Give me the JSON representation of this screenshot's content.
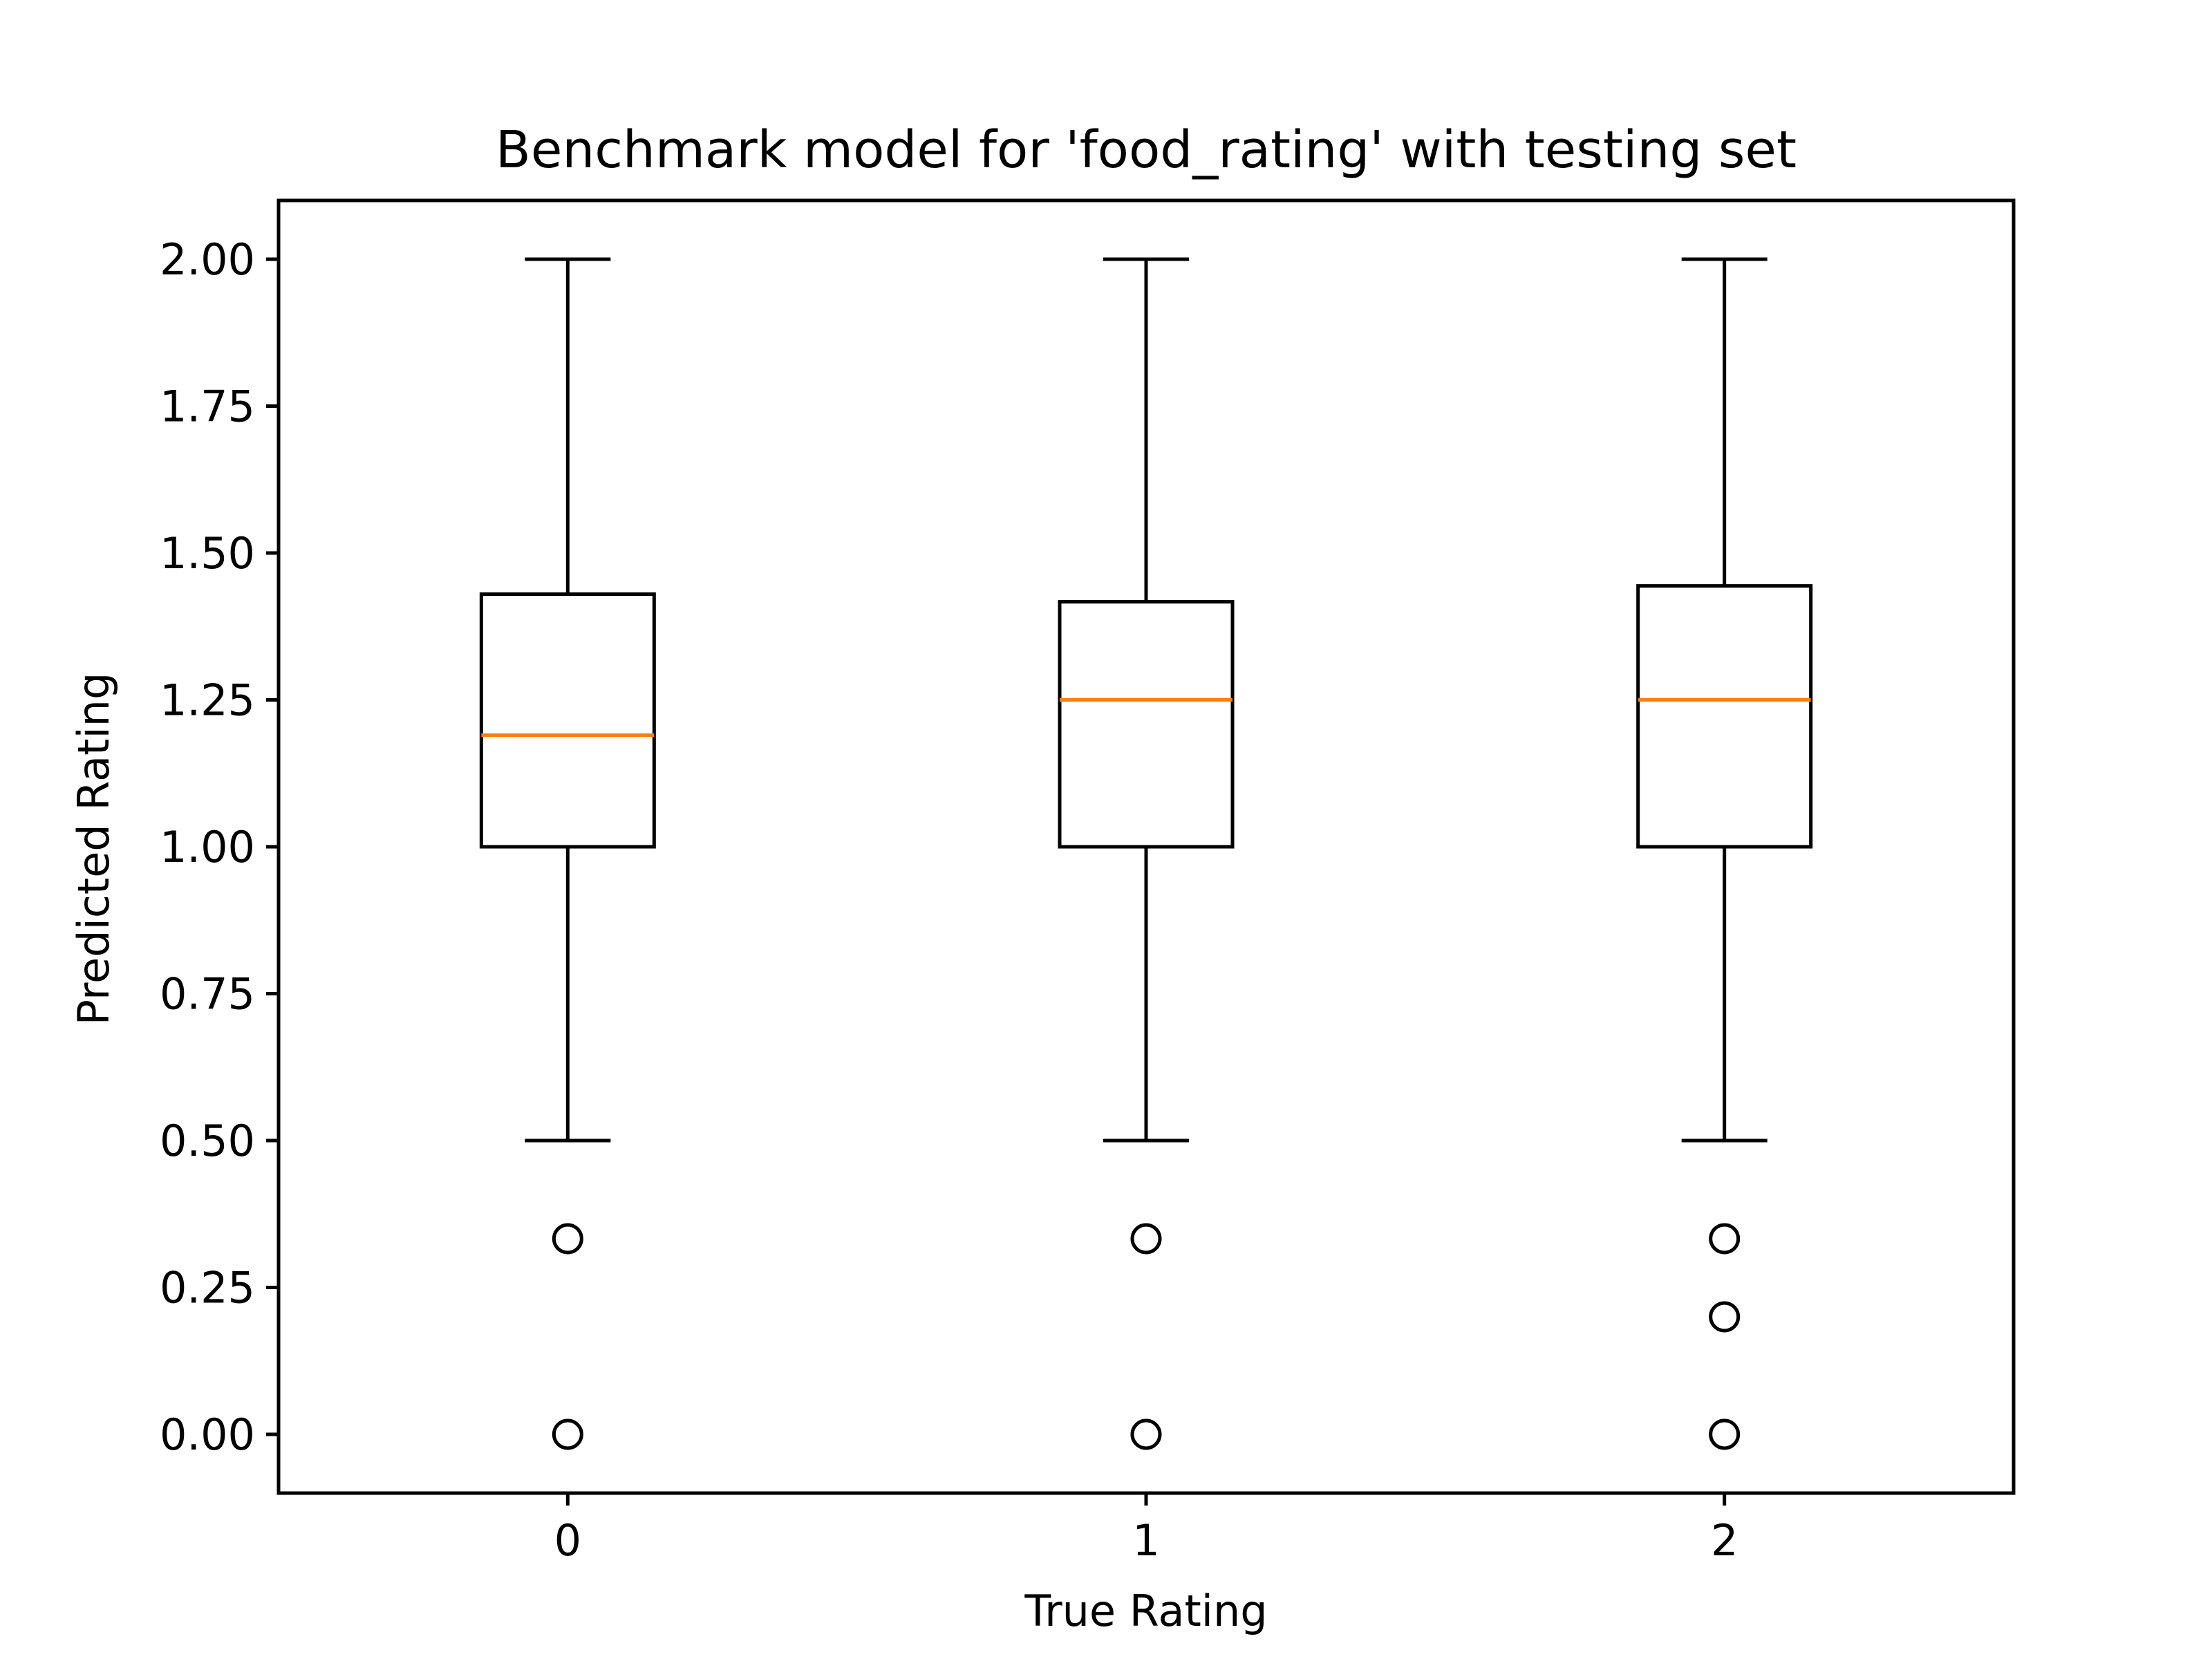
{
  "chart_data": {
    "type": "box",
    "title": "Benchmark model for 'food_rating' with testing set",
    "xlabel": "True Rating",
    "ylabel": "Predicted Rating",
    "ylim": [
      -0.1,
      2.1
    ],
    "xlim": [
      -0.5,
      2.5
    ],
    "grid": false,
    "xticks": [
      0,
      1,
      2
    ],
    "xtick_labels": [
      "0",
      "1",
      "2"
    ],
    "yticks": [
      0,
      0.25,
      0.5,
      0.75,
      1.0,
      1.25,
      1.5,
      1.75,
      2.0
    ],
    "ytick_labels": [
      "0.00",
      "0.25",
      "0.50",
      "0.75",
      "1.00",
      "1.25",
      "1.50",
      "1.75",
      "2.00"
    ],
    "colors": {
      "box": "#000000",
      "median": "#ff7f0e",
      "frame": "#000000"
    },
    "boxes": [
      {
        "x": 0,
        "whisker_low": 0.5,
        "q1": 1.0,
        "median": 1.19,
        "q3": 1.43,
        "whisker_high": 2.0,
        "outliers": [
          0.333,
          0.0
        ]
      },
      {
        "x": 1,
        "whisker_low": 0.5,
        "q1": 1.0,
        "median": 1.25,
        "q3": 1.417,
        "whisker_high": 2.0,
        "outliers": [
          0.333,
          0.0
        ]
      },
      {
        "x": 2,
        "whisker_low": 0.5,
        "q1": 1.0,
        "median": 1.25,
        "q3": 1.444,
        "whisker_high": 2.0,
        "outliers": [
          0.333,
          0.2,
          0.0
        ]
      }
    ]
  }
}
